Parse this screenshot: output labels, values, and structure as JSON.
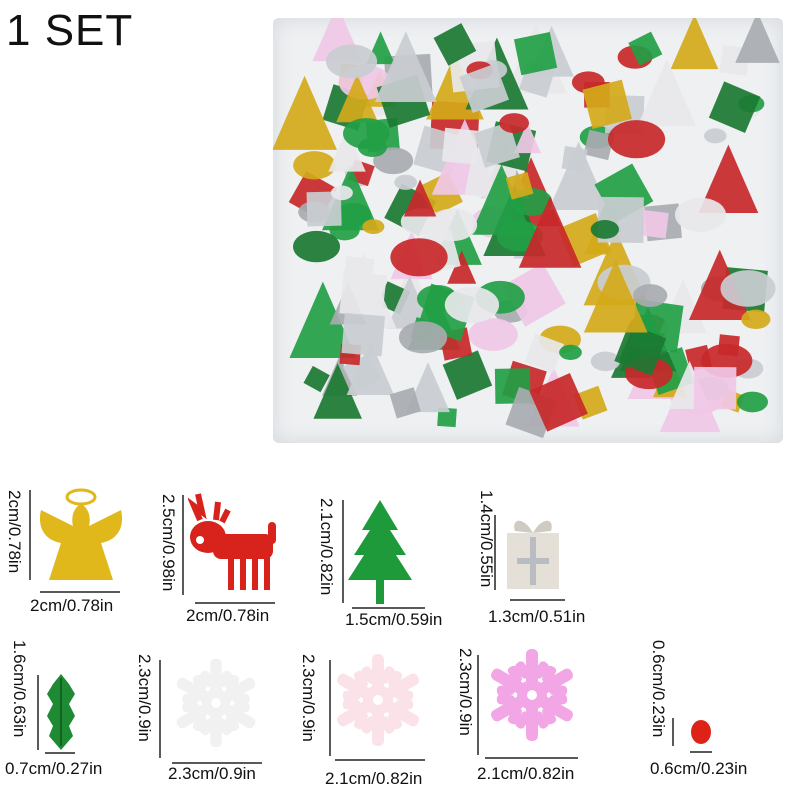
{
  "title": "1 SET",
  "items": [
    {
      "name": "angel",
      "height_label": "2cm/0.78in",
      "width_label": "2cm/0.78in",
      "color": "#e0b81c"
    },
    {
      "name": "reindeer",
      "height_label": "2.5cm/0.98in",
      "width_label": "2cm/0.78in",
      "color": "#d8221c"
    },
    {
      "name": "tree",
      "height_label": "2.1cm/0.82in",
      "width_label": "1.5cm/0.59in",
      "color": "#1e9a3a"
    },
    {
      "name": "gift",
      "height_label": "1.4cm/0.55in",
      "width_label": "1.3cm/0.51in",
      "color": "#d9d6cf"
    },
    {
      "name": "holly",
      "height_label": "1.6cm/0.63in",
      "width_label": "0.7cm/0.27in",
      "color": "#1f8a34"
    },
    {
      "name": "white-snowflake",
      "height_label": "2.3cm/0.9in",
      "width_label": "2.3cm/0.9in",
      "color": "#f7f7f7"
    },
    {
      "name": "pink-snowflake",
      "height_label": "2.3cm/0.9in",
      "width_label": "2.1cm/0.82in",
      "color": "#fbe1e8"
    },
    {
      "name": "iridescent-snowflake",
      "height_label": "2.3cm/0.9in",
      "width_label": "2.1cm/0.82in",
      "color": "#f2a6e6"
    },
    {
      "name": "dot",
      "height_label": "0.6cm/0.23in",
      "width_label": "0.6cm/0.23in",
      "color": "#dd2218"
    }
  ]
}
